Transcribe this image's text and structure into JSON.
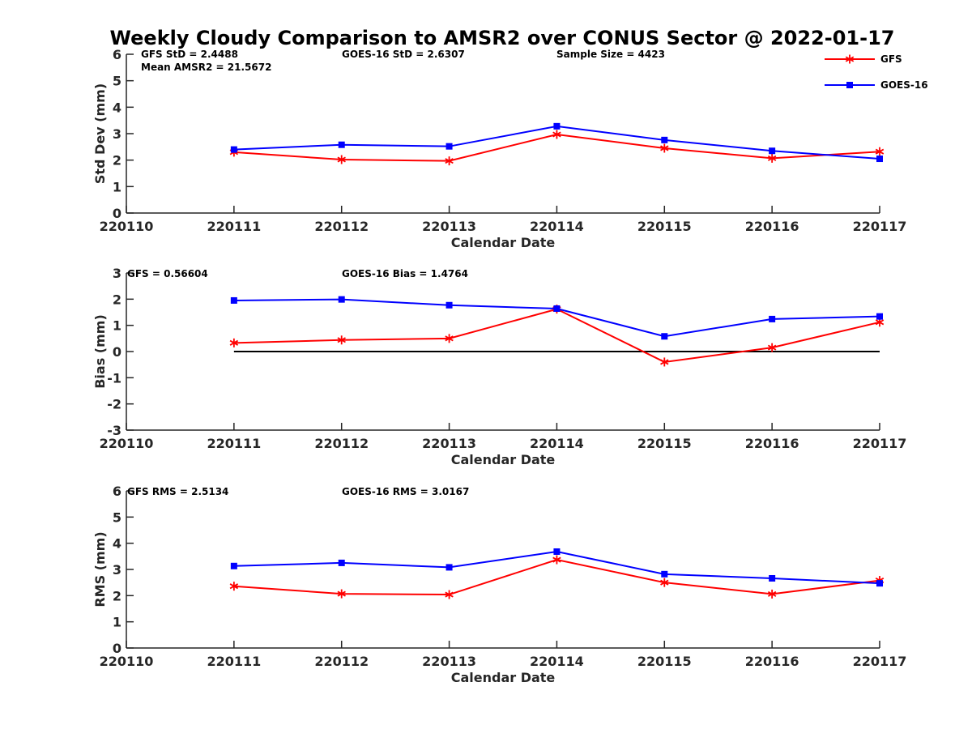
{
  "figure": {
    "title": "Weekly Cloudy Comparison to AMSR2 over CONUS Sector @ 2022-01-17"
  },
  "legend": {
    "placement": "top-right",
    "entries": [
      {
        "label": "GFS",
        "color": "#ff0000",
        "marker": "asterisk"
      },
      {
        "label": "GOES-16",
        "color": "#0000ff",
        "marker": "square"
      }
    ]
  },
  "chart_data": [
    {
      "type": "line",
      "xlabel": "Calendar Date",
      "ylabel": "Std Dev (mm)",
      "categories": [
        "220110",
        "220111",
        "220112",
        "220113",
        "220114",
        "220115",
        "220116",
        "220117"
      ],
      "ylim": [
        0,
        6
      ],
      "yticks": [
        "0",
        "1",
        "2",
        "3",
        "4",
        "5",
        "6"
      ],
      "annotations": [
        "GFS StD = 2.4488",
        "Mean AMSR2 = 21.5672",
        "GOES-16 StD = 2.6307",
        "Sample Size = 4423"
      ],
      "series": [
        {
          "name": "GFS",
          "color": "#ff0000",
          "marker": "asterisk",
          "x": [
            "220111",
            "220112",
            "220113",
            "220114",
            "220115",
            "220116",
            "220117"
          ],
          "values": [
            2.3,
            2.02,
            1.97,
            2.97,
            2.45,
            2.07,
            2.32
          ]
        },
        {
          "name": "GOES-16",
          "color": "#0000ff",
          "marker": "square",
          "x": [
            "220111",
            "220112",
            "220113",
            "220114",
            "220115",
            "220116",
            "220117"
          ],
          "values": [
            2.4,
            2.58,
            2.52,
            3.28,
            2.76,
            2.35,
            2.05
          ]
        }
      ],
      "reference_line": null
    },
    {
      "type": "line",
      "xlabel": "Calendar Date",
      "ylabel": "Bias (mm)",
      "categories": [
        "220110",
        "220111",
        "220112",
        "220113",
        "220114",
        "220115",
        "220116",
        "220117"
      ],
      "ylim": [
        -3,
        3
      ],
      "yticks": [
        "-3",
        "-2",
        "-1",
        "0",
        "1",
        "2",
        "3"
      ],
      "annotations": [
        "GFS = 0.56604",
        "GOES-16 Bias  = 1.4764"
      ],
      "series": [
        {
          "name": "GFS",
          "color": "#ff0000",
          "marker": "asterisk",
          "x": [
            "220111",
            "220112",
            "220113",
            "220114",
            "220115",
            "220116",
            "220117"
          ],
          "values": [
            0.33,
            0.44,
            0.5,
            1.62,
            -0.4,
            0.15,
            1.12
          ]
        },
        {
          "name": "GOES-16",
          "color": "#0000ff",
          "marker": "square",
          "x": [
            "220111",
            "220112",
            "220113",
            "220114",
            "220115",
            "220116",
            "220117"
          ],
          "values": [
            1.95,
            1.99,
            1.77,
            1.64,
            0.58,
            1.24,
            1.34
          ]
        }
      ],
      "reference_line": {
        "y": 0,
        "x_from": "220111",
        "x_to": "220117",
        "color": "#000000"
      }
    },
    {
      "type": "line",
      "xlabel": "Calendar Date",
      "ylabel": "RMS (mm)",
      "categories": [
        "220110",
        "220111",
        "220112",
        "220113",
        "220114",
        "220115",
        "220116",
        "220117"
      ],
      "ylim": [
        0,
        6
      ],
      "yticks": [
        "0",
        "1",
        "2",
        "3",
        "4",
        "5",
        "6"
      ],
      "annotations": [
        "GFS RMS = 2.5134",
        "GOES-16 RMS = 3.0167"
      ],
      "series": [
        {
          "name": "GFS",
          "color": "#ff0000",
          "marker": "asterisk",
          "x": [
            "220111",
            "220112",
            "220113",
            "220114",
            "220115",
            "220116",
            "220117"
          ],
          "values": [
            2.36,
            2.07,
            2.04,
            3.37,
            2.5,
            2.06,
            2.58
          ]
        },
        {
          "name": "GOES-16",
          "color": "#0000ff",
          "marker": "square",
          "x": [
            "220111",
            "220112",
            "220113",
            "220114",
            "220115",
            "220116",
            "220117"
          ],
          "values": [
            3.13,
            3.25,
            3.08,
            3.68,
            2.82,
            2.66,
            2.47
          ]
        }
      ],
      "reference_line": null
    }
  ]
}
